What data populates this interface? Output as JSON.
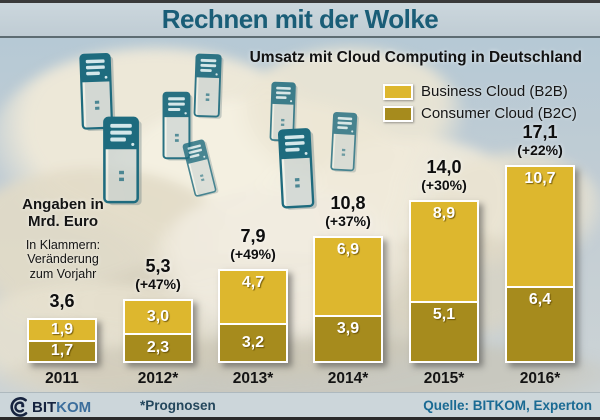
{
  "header": {
    "title": "Rechnen mit der Wolke"
  },
  "subtitle": "Umsatz mit Cloud Computing in Deutschland",
  "legend": [
    {
      "label": "Business Cloud (B2B)",
      "color": "#ddb72e"
    },
    {
      "label": "Consumer Cloud (B2C)",
      "color": "#a68b1d"
    }
  ],
  "notes": {
    "units": "Angaben in<br>Mrd. Euro",
    "units_lines": [
      "Angaben in",
      "Mrd. Euro"
    ],
    "paren_lines": [
      "In Klammern:",
      "Veränderung",
      "zum Vorjahr"
    ]
  },
  "chart_data": {
    "type": "bar",
    "stacked": true,
    "title": "Umsatz mit Cloud Computing in Deutschland",
    "unit": "Mrd. Euro",
    "categories": [
      "2011",
      "2012*",
      "2013*",
      "2014*",
      "2015*",
      "2016*"
    ],
    "series": [
      {
        "name": "Business Cloud (B2B)",
        "color": "#ddb72e",
        "values": [
          1.9,
          3.0,
          4.7,
          6.9,
          8.9,
          10.7
        ],
        "labels": [
          "1,9",
          "3,0",
          "4,7",
          "6,9",
          "8,9",
          "10,7"
        ]
      },
      {
        "name": "Consumer Cloud (B2C)",
        "color": "#a68b1d",
        "values": [
          1.7,
          2.3,
          3.2,
          3.9,
          5.1,
          6.4
        ],
        "labels": [
          "1,7",
          "2,3",
          "3,2",
          "3,9",
          "5,1",
          "6,4"
        ]
      }
    ],
    "totals": {
      "values": [
        3.6,
        5.3,
        7.9,
        10.8,
        14.0,
        17.1
      ],
      "labels": [
        "3,6",
        "5,3",
        "7,9",
        "10,8",
        "14,0",
        "17,1"
      ],
      "pct_change": [
        "",
        "(+47%)",
        "(+49%)",
        "(+37%)",
        "(+30%)",
        "(+22%)"
      ]
    },
    "legend_position": "top-right",
    "grid": false,
    "ylim": [
      0,
      18
    ]
  },
  "icons": {
    "server": "server-tower-icon",
    "logo_mark": "bitkom-logo-mark"
  },
  "footer": {
    "logo_bit": "BIT",
    "logo_kom": "KOM",
    "prognosen": "*Prognosen",
    "source": "Quelle: BITKOM, Experton"
  },
  "colors": {
    "title": "#1a5d77",
    "b2b": "#ddb72e",
    "b2c": "#a68b1d",
    "server_teal": "#1e6b7e",
    "header_band": "#c5d1d8",
    "footer_band": "#ccd6da",
    "source_text": "#1a6a93"
  }
}
